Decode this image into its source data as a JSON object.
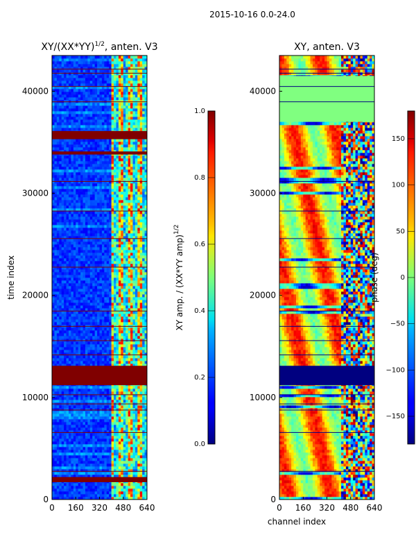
{
  "figure": {
    "suptitle": "2015-10-16 0.0-24.0"
  },
  "chart_data": [
    {
      "type": "heatmap",
      "title_text": "XY/(XX*YY)",
      "title_exp": "1/2",
      "title_suffix": ", anten. V3",
      "xlabel": "",
      "ylabel": "time index",
      "xlim": [
        0,
        640
      ],
      "ylim": [
        0,
        43500
      ],
      "xticks": [
        0,
        160,
        320,
        480,
        640
      ],
      "xtick_labels": [
        "0",
        "160",
        "320",
        "480",
        "640"
      ],
      "yticks": [
        0,
        10000,
        20000,
        30000,
        40000
      ],
      "ytick_labels": [
        "0",
        "10000",
        "20000",
        "30000",
        "40000"
      ],
      "colormap": "jet",
      "colorbar": {
        "label_text": "XY amp. / (XX*YY amp)",
        "label_exp": "1/2",
        "range": [
          0.0,
          1.0
        ],
        "ticks": [
          0.0,
          0.2,
          0.4,
          0.6,
          0.8,
          1.0
        ],
        "tick_labels": [
          "0.0",
          "0.2",
          "0.4",
          "0.6",
          "0.8",
          "1.0"
        ]
      },
      "saturated_time_bands": [
        {
          "from": 11200,
          "to": 13100,
          "value": 1.0
        },
        {
          "from": 1700,
          "to": 2200,
          "value": 1.0
        },
        {
          "from": 35300,
          "to": 36100,
          "value": 1.0
        },
        {
          "from": 33800,
          "to": 34100,
          "value": 1.0
        }
      ],
      "band_structure": [
        {
          "channel_from": 0,
          "channel_to": 400,
          "level": "low (~0.1-0.2)"
        },
        {
          "channel_from": 400,
          "channel_to": 640,
          "level": "high, variable (~0.3-0.9)"
        }
      ]
    },
    {
      "type": "heatmap",
      "title_text": "XY, anten. V3",
      "xlabel": "channel index",
      "ylabel": "",
      "xlim": [
        0,
        640
      ],
      "ylim": [
        0,
        43500
      ],
      "xticks": [
        0,
        160,
        320,
        480,
        640
      ],
      "xtick_labels": [
        "0",
        "160",
        "320",
        "480",
        "640"
      ],
      "yticks": [
        0,
        10000,
        20000,
        30000,
        40000
      ],
      "ytick_labels": [
        "0",
        "10000",
        "20000",
        "30000",
        "40000"
      ],
      "colormap": "jet",
      "colorbar": {
        "label_text": "phase (deg)",
        "range": [
          -180,
          180
        ],
        "ticks": [
          -150,
          -100,
          -50,
          0,
          50,
          100,
          150
        ],
        "tick_labels": [
          "−150",
          "−100",
          "−50",
          "0",
          "50",
          "100",
          "150"
        ]
      },
      "saturated_time_bands": [
        {
          "from": 11200,
          "to": 13100,
          "value": -180
        },
        {
          "from": 37000,
          "to": 41500,
          "value": 0
        }
      ]
    }
  ]
}
